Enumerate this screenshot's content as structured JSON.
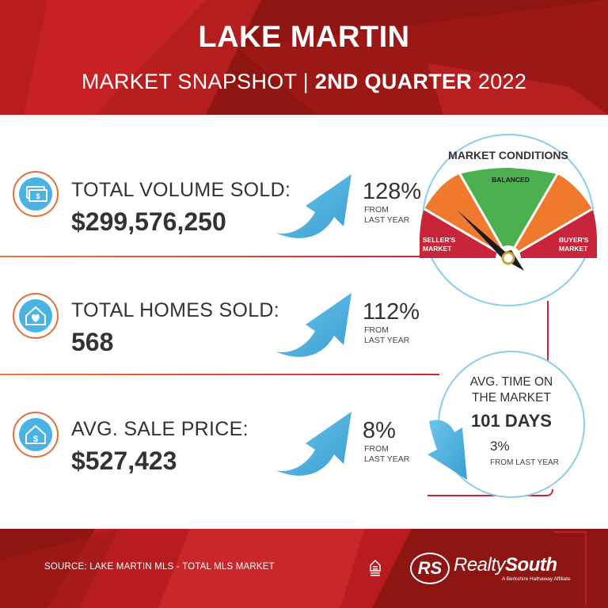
{
  "header": {
    "title": "LAKE MARTIN",
    "subtitle_left": "MARKET SNAPSHOT | ",
    "subtitle_bold": "2ND QUARTER",
    "subtitle_year": " 2022"
  },
  "stats": [
    {
      "label": "TOTAL VOLUME SOLD:",
      "value": "$299,576,250",
      "change": "128%",
      "change_note_1": "FROM",
      "change_note_2": "LAST YEAR",
      "icon": "money-icon",
      "trend": "up"
    },
    {
      "label": "TOTAL HOMES SOLD:",
      "value": "568",
      "change": "112%",
      "change_note_1": "FROM",
      "change_note_2": "LAST YEAR",
      "icon": "home-heart-icon",
      "trend": "up"
    },
    {
      "label": "AVG. SALE PRICE:",
      "value": "$527,423",
      "change": "8%",
      "change_note_1": "FROM",
      "change_note_2": "LAST YEAR",
      "icon": "home-dollar-icon",
      "trend": "up"
    }
  ],
  "market_conditions": {
    "title": "MARKET CONDITIONS",
    "segments": [
      {
        "label_1": "SELLER'S",
        "label_2": "MARKET",
        "color": "#c8243a"
      },
      {
        "label_1": "",
        "label_2": "",
        "color": "#ef7a2e"
      },
      {
        "label_1": "BALANCED",
        "label_2": "",
        "color": "#4caf50"
      },
      {
        "label_1": "",
        "label_2": "",
        "color": "#ef7a2e"
      },
      {
        "label_1": "BUYER'S",
        "label_2": "MARKET",
        "color": "#c8243a"
      }
    ],
    "needle_position": "seller's market"
  },
  "time_on_market": {
    "title_1": "AVG. TIME ON",
    "title_2": "THE MARKET",
    "days": "101 DAYS",
    "change": "3%",
    "change_note": "FROM LAST YEAR",
    "trend": "down"
  },
  "footer": {
    "source": "SOURCE: LAKE MARTIN MLS - TOTAL MLS MARKET",
    "logo_initials": "RS",
    "brand_light": "Realty",
    "brand_bold": "South",
    "tagline": "A Berkshire Hathaway Affiliate"
  },
  "colors": {
    "header_bg": "#8e1512",
    "accent_blue": "#4ab3e3",
    "accent_orange": "#e97a36",
    "accent_red": "#c8243a"
  }
}
